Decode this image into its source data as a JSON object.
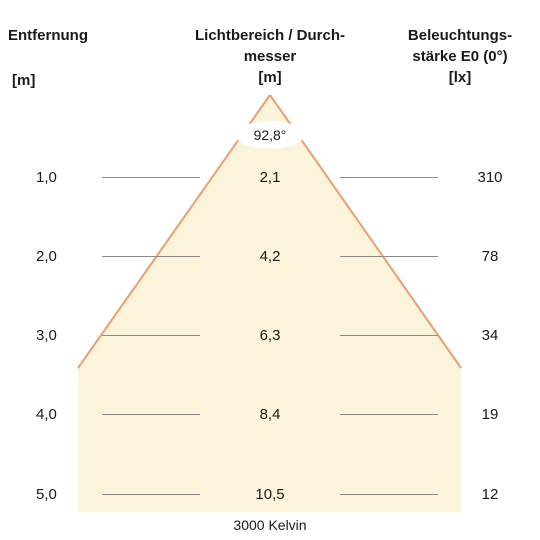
{
  "header": {
    "distance_title": "Entfernung",
    "distance_unit": "[m]",
    "diameter_title_1": "Lichtbereich / Durch-",
    "diameter_title_2": "messer",
    "diameter_unit": "[m]",
    "illuminance_title_1": "Beleuchtungs-",
    "illuminance_title_2": "stärke E0 (0°)",
    "illuminance_unit": "[lx]"
  },
  "beam": {
    "angle_label": "92,8°",
    "fill_color": "#fbf3da",
    "edge_color": "#e8a070"
  },
  "rows": [
    {
      "distance": "1,0",
      "diameter": "2,1",
      "illuminance": "310"
    },
    {
      "distance": "2,0",
      "diameter": "4,2",
      "illuminance": "78"
    },
    {
      "distance": "3,0",
      "diameter": "6,3",
      "illuminance": "34"
    },
    {
      "distance": "4,0",
      "diameter": "8,4",
      "illuminance": "19"
    },
    {
      "distance": "5,0",
      "diameter": "10,5",
      "illuminance": "12"
    }
  ],
  "caption": "3000 Kelvin"
}
